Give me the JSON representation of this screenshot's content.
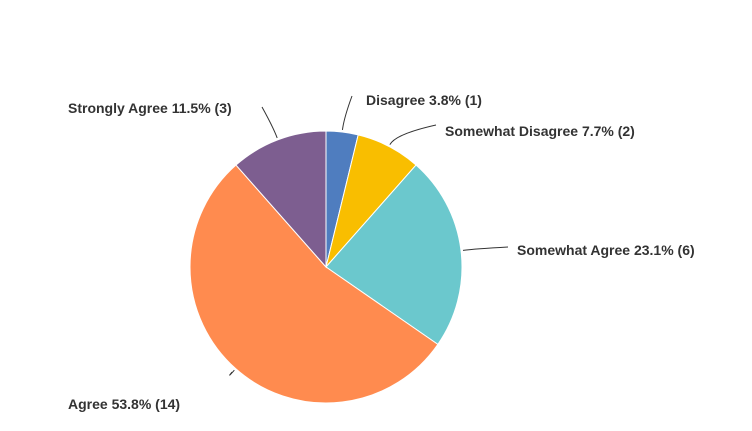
{
  "chart_data": {
    "type": "pie",
    "start": "top",
    "direction": "clockwise",
    "slices": [
      {
        "label": "Disagree",
        "percent": 3.8,
        "count": 1,
        "color": "#4f7dbf",
        "text": "Disagree 3.8% (1)"
      },
      {
        "label": "Somewhat Disagree",
        "percent": 7.7,
        "count": 2,
        "color": "#f9be00",
        "text": "Somewhat Disagree 7.7% (2)"
      },
      {
        "label": "Somewhat Agree",
        "percent": 23.1,
        "count": 6,
        "color": "#6bc8cd",
        "text": "Somewhat Agree 23.1% (6)"
      },
      {
        "label": "Agree",
        "percent": 53.8,
        "count": 14,
        "color": "#ff8b4f",
        "text": "Agree 53.8% (14)"
      },
      {
        "label": "Strongly Agree",
        "percent": 11.5,
        "count": 3,
        "color": "#7d5e90",
        "text": "Strongly Agree 11.5% (3)"
      }
    ]
  }
}
